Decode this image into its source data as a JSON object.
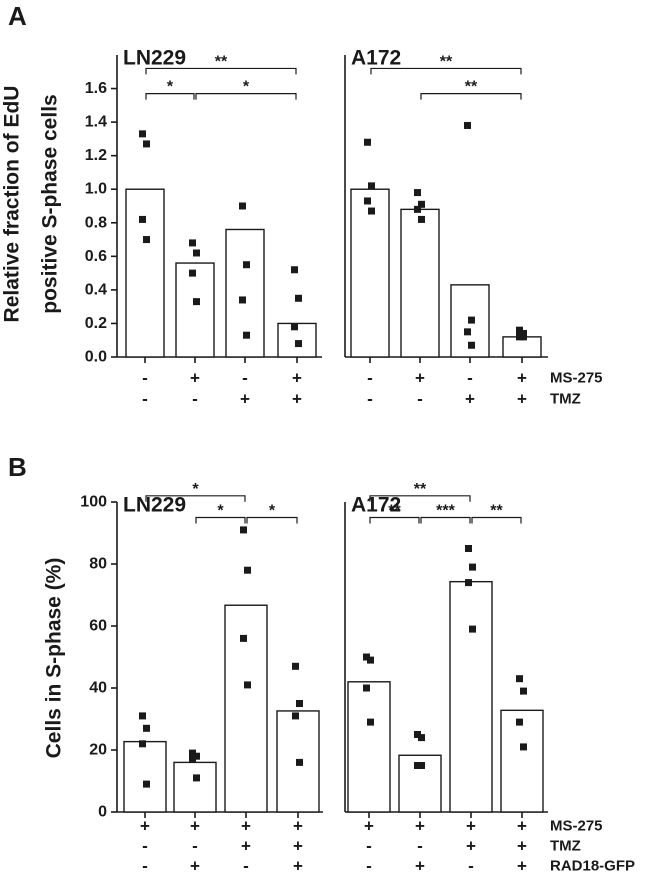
{
  "chart_data": [
    {
      "panel": "A",
      "type": "bar",
      "ylabel_lines": [
        "Relative fraction of EdU",
        "positive S-phase cells"
      ],
      "ylim": [
        0,
        1.8
      ],
      "yticks": [
        0.0,
        0.2,
        0.4,
        0.6,
        0.8,
        1.0,
        1.2,
        1.4,
        1.6
      ],
      "ytick_labels": [
        "0.0",
        "0.2",
        "0.4",
        "0.6",
        "0.8",
        "1.0",
        "1.2",
        "1.4",
        "1.6"
      ],
      "treatments": [
        {
          "name": "MS-275",
          "values": [
            "-",
            "+",
            "-",
            "+"
          ]
        },
        {
          "name": "TMZ",
          "values": [
            "-",
            "-",
            "+",
            "+"
          ]
        }
      ],
      "cell_lines": [
        {
          "name": "LN229",
          "bars": [
            1.0,
            0.56,
            0.76,
            0.2
          ],
          "points": [
            [
              1.33,
              1.27,
              0.82,
              0.7
            ],
            [
              0.68,
              0.62,
              0.5,
              0.33
            ],
            [
              0.9,
              0.55,
              0.34,
              0.13
            ],
            [
              0.52,
              0.35,
              0.18,
              0.08
            ]
          ],
          "significance": [
            {
              "from": 0,
              "to": 3,
              "label": "**",
              "y": 1.72
            },
            {
              "from": 0,
              "to": 1,
              "label": "*",
              "y": 1.57
            },
            {
              "from": 1,
              "to": 3,
              "label": "*",
              "y": 1.57
            }
          ]
        },
        {
          "name": "A172",
          "bars": [
            1.0,
            0.88,
            0.43,
            0.12
          ],
          "points": [
            [
              1.28,
              1.02,
              0.93,
              0.87
            ],
            [
              0.98,
              0.91,
              0.88,
              0.82
            ],
            [
              1.38,
              0.22,
              0.15,
              0.07
            ],
            [
              0.16,
              0.14,
              0.12,
              0.12
            ]
          ],
          "significance": [
            {
              "from": 0,
              "to": 3,
              "label": "**",
              "y": 1.72
            },
            {
              "from": 1,
              "to": 3,
              "label": "**",
              "y": 1.57
            }
          ]
        }
      ]
    },
    {
      "panel": "B",
      "type": "bar",
      "ylabel_lines": [
        "Cells in S-phase (%)"
      ],
      "ylim": [
        0,
        100
      ],
      "yticks": [
        0,
        20,
        40,
        60,
        80,
        100
      ],
      "ytick_labels": [
        "0",
        "20",
        "40",
        "60",
        "80",
        "100"
      ],
      "treatments": [
        {
          "name": "MS-275",
          "values": [
            "+",
            "+",
            "+",
            "+"
          ]
        },
        {
          "name": "TMZ",
          "values": [
            "-",
            "-",
            "+",
            "+"
          ]
        },
        {
          "name": "RAD18-GFP",
          "values": [
            "-",
            "+",
            "-",
            "+"
          ]
        }
      ],
      "cell_lines": [
        {
          "name": "LN229",
          "bars": [
            22.7,
            16.0,
            66.7,
            32.6
          ],
          "points": [
            [
              31,
              27,
              22,
              9
            ],
            [
              19,
              18,
              17,
              11
            ],
            [
              91,
              78,
              56,
              41
            ],
            [
              47,
              35,
              31,
              16
            ]
          ],
          "significance": [
            {
              "from": 0,
              "to": 2,
              "label": "*",
              "y": 102
            },
            {
              "from": 1,
              "to": 2,
              "label": "*",
              "y": 95
            },
            {
              "from": 2,
              "to": 3,
              "label": "*",
              "y": 95
            }
          ]
        },
        {
          "name": "A172",
          "bars": [
            42.0,
            18.3,
            74.3,
            32.8
          ],
          "points": [
            [
              50,
              49,
              40,
              29
            ],
            [
              25,
              24,
              15,
              15
            ],
            [
              85,
              79,
              74,
              59
            ],
            [
              43,
              39,
              29,
              21
            ]
          ],
          "significance": [
            {
              "from": 0,
              "to": 2,
              "label": "**",
              "y": 102
            },
            {
              "from": 0,
              "to": 1,
              "label": "**",
              "y": 95
            },
            {
              "from": 1,
              "to": 2,
              "label": "***",
              "y": 95
            },
            {
              "from": 2,
              "to": 3,
              "label": "**",
              "y": 95
            }
          ]
        }
      ]
    }
  ]
}
